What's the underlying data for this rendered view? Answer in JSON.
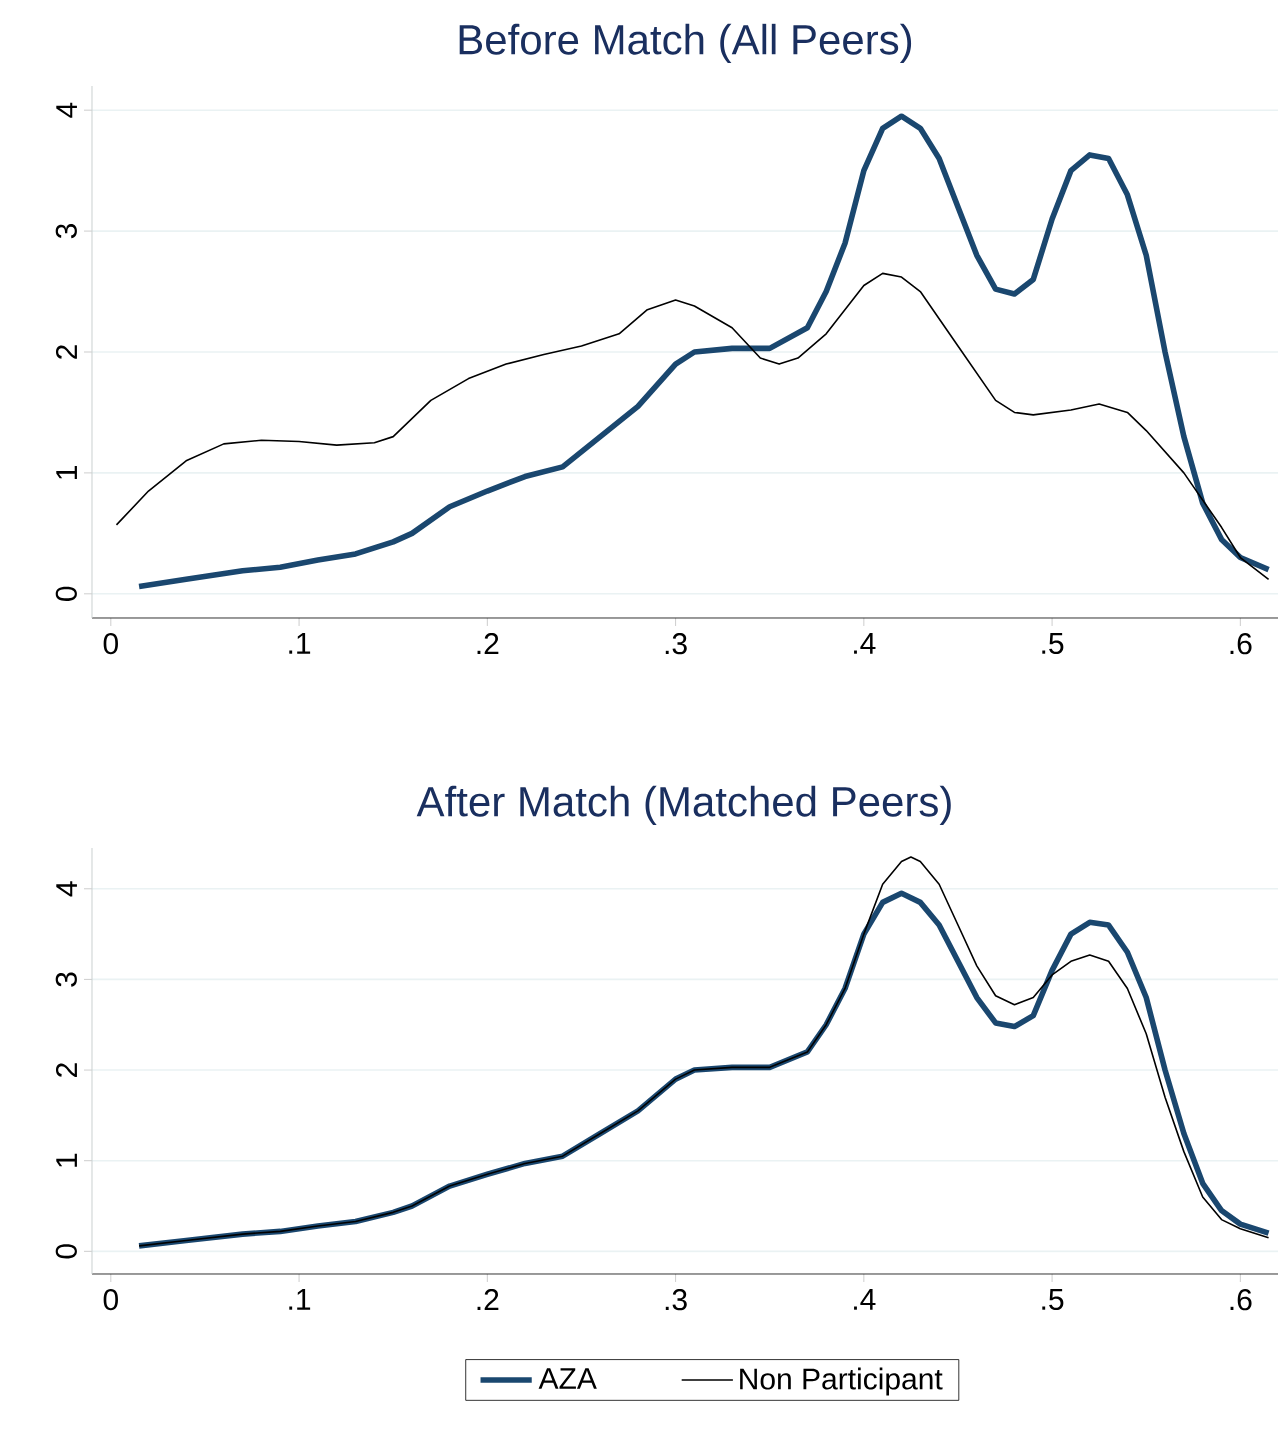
{
  "chart_data": [
    {
      "type": "line",
      "title": "Before Match (All Peers)",
      "xlim": [
        -0.01,
        0.62
      ],
      "ylim": [
        -0.2,
        4.2
      ],
      "xticks": [
        0,
        {
          "value": 0.1,
          "label": ".1"
        },
        {
          "value": 0.2,
          "label": ".2"
        },
        {
          "value": 0.3,
          "label": ".3"
        },
        {
          "value": 0.4,
          "label": ".4"
        },
        {
          "value": 0.5,
          "label": ".5"
        },
        {
          "value": 0.6,
          "label": ".6"
        }
      ],
      "yticks": [
        0,
        1,
        2,
        3,
        4
      ],
      "grid": "y",
      "series": [
        {
          "color": "#1a476f",
          "x": [
            0.015,
            0.04,
            0.07,
            0.09,
            0.11,
            0.13,
            0.15,
            0.16,
            0.18,
            0.2,
            0.22,
            0.24,
            0.26,
            0.28,
            0.3,
            0.31,
            0.33,
            0.35,
            0.37,
            0.38,
            0.39,
            0.4,
            0.41,
            0.42,
            0.43,
            0.44,
            0.45,
            0.46,
            0.47,
            0.48,
            0.49,
            0.5,
            0.51,
            0.52,
            0.53,
            0.54,
            0.55,
            0.56,
            0.57,
            0.58,
            0.59,
            0.6,
            0.615
          ],
          "values": [
            0.06,
            0.12,
            0.19,
            0.22,
            0.28,
            0.33,
            0.43,
            0.5,
            0.72,
            0.85,
            0.97,
            1.05,
            1.3,
            1.55,
            1.9,
            2.0,
            2.03,
            2.03,
            2.2,
            2.5,
            2.9,
            3.5,
            3.85,
            3.95,
            3.85,
            3.6,
            3.2,
            2.8,
            2.52,
            2.48,
            2.6,
            3.1,
            3.5,
            3.63,
            3.6,
            3.3,
            2.8,
            2.0,
            1.3,
            0.75,
            0.45,
            0.3,
            0.2
          ]
        },
        {
          "color": "#000000",
          "x": [
            0.003,
            0.02,
            0.04,
            0.06,
            0.08,
            0.1,
            0.12,
            0.14,
            0.15,
            0.17,
            0.19,
            0.21,
            0.23,
            0.25,
            0.27,
            0.285,
            0.3,
            0.31,
            0.33,
            0.345,
            0.355,
            0.365,
            0.38,
            0.4,
            0.41,
            0.42,
            0.43,
            0.45,
            0.47,
            0.48,
            0.49,
            0.51,
            0.525,
            0.54,
            0.55,
            0.57,
            0.59,
            0.6,
            0.615
          ],
          "values": [
            0.57,
            0.85,
            1.1,
            1.24,
            1.27,
            1.26,
            1.23,
            1.25,
            1.3,
            1.6,
            1.78,
            1.9,
            1.98,
            2.05,
            2.15,
            2.35,
            2.43,
            2.38,
            2.2,
            1.95,
            1.9,
            1.95,
            2.15,
            2.55,
            2.65,
            2.62,
            2.5,
            2.05,
            1.6,
            1.5,
            1.48,
            1.52,
            1.57,
            1.5,
            1.35,
            1.0,
            0.55,
            0.3,
            0.12
          ]
        }
      ]
    },
    {
      "type": "line",
      "title": "After Match (Matched Peers)",
      "xlim": [
        -0.01,
        0.62
      ],
      "ylim": [
        -0.25,
        4.45
      ],
      "xticks": [
        0,
        {
          "value": 0.1,
          "label": ".1"
        },
        {
          "value": 0.2,
          "label": ".2"
        },
        {
          "value": 0.3,
          "label": ".3"
        },
        {
          "value": 0.4,
          "label": ".4"
        },
        {
          "value": 0.5,
          "label": ".5"
        },
        {
          "value": 0.6,
          "label": ".6"
        }
      ],
      "yticks": [
        0,
        1,
        2,
        3,
        4
      ],
      "grid": "y",
      "legend": "bottom",
      "series": [
        {
          "name": "AZA",
          "color": "#1a476f",
          "x": [
            0.015,
            0.04,
            0.07,
            0.09,
            0.11,
            0.13,
            0.15,
            0.16,
            0.18,
            0.2,
            0.22,
            0.24,
            0.26,
            0.28,
            0.3,
            0.31,
            0.33,
            0.35,
            0.37,
            0.38,
            0.39,
            0.4,
            0.41,
            0.42,
            0.43,
            0.44,
            0.45,
            0.46,
            0.47,
            0.48,
            0.49,
            0.5,
            0.51,
            0.52,
            0.53,
            0.54,
            0.55,
            0.56,
            0.57,
            0.58,
            0.59,
            0.6,
            0.615
          ],
          "values": [
            0.06,
            0.12,
            0.19,
            0.22,
            0.28,
            0.33,
            0.43,
            0.5,
            0.72,
            0.85,
            0.97,
            1.05,
            1.3,
            1.55,
            1.9,
            2.0,
            2.03,
            2.03,
            2.2,
            2.5,
            2.9,
            3.5,
            3.85,
            3.95,
            3.85,
            3.6,
            3.2,
            2.8,
            2.52,
            2.48,
            2.6,
            3.1,
            3.5,
            3.63,
            3.6,
            3.3,
            2.8,
            2.0,
            1.3,
            0.75,
            0.45,
            0.3,
            0.2
          ]
        },
        {
          "name": "Non Participant",
          "color": "#000000",
          "x": [
            0.015,
            0.04,
            0.07,
            0.09,
            0.11,
            0.13,
            0.15,
            0.16,
            0.18,
            0.2,
            0.22,
            0.24,
            0.26,
            0.28,
            0.3,
            0.31,
            0.33,
            0.35,
            0.37,
            0.38,
            0.39,
            0.4,
            0.41,
            0.42,
            0.425,
            0.43,
            0.44,
            0.45,
            0.46,
            0.47,
            0.48,
            0.49,
            0.5,
            0.51,
            0.52,
            0.53,
            0.54,
            0.55,
            0.56,
            0.57,
            0.58,
            0.59,
            0.6,
            0.615
          ],
          "values": [
            0.06,
            0.12,
            0.19,
            0.22,
            0.28,
            0.33,
            0.43,
            0.5,
            0.72,
            0.85,
            0.97,
            1.05,
            1.3,
            1.55,
            1.9,
            2.0,
            2.03,
            2.03,
            2.2,
            2.5,
            2.9,
            3.5,
            4.05,
            4.3,
            4.35,
            4.3,
            4.05,
            3.6,
            3.15,
            2.82,
            2.72,
            2.8,
            3.05,
            3.2,
            3.27,
            3.2,
            2.9,
            2.4,
            1.7,
            1.1,
            0.6,
            0.35,
            0.25,
            0.15
          ]
        }
      ]
    }
  ]
}
